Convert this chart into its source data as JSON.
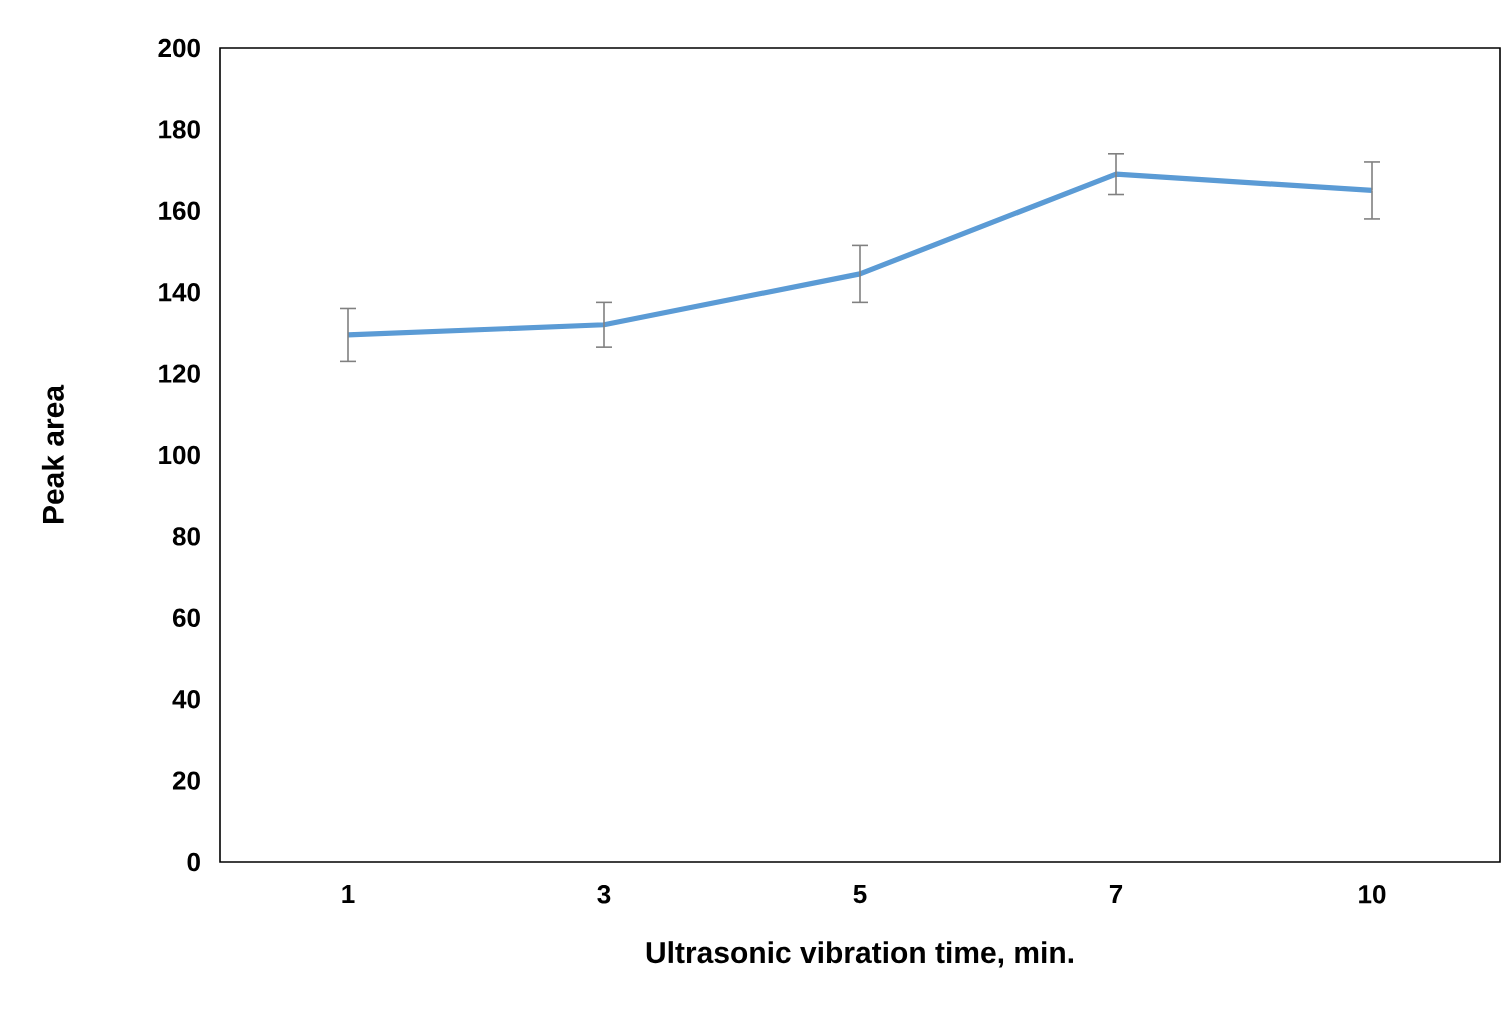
{
  "chart_data": {
    "type": "line",
    "xlabel": "Ultrasonic vibration time, min.",
    "ylabel": "Peak area",
    "categories": [
      "1",
      "3",
      "5",
      "7",
      "10"
    ],
    "values": [
      129.5,
      132,
      144.5,
      169,
      165
    ],
    "errors": [
      6.5,
      5.5,
      7,
      5,
      7
    ],
    "color": "#5b9bd5",
    "ylim": [
      0,
      200
    ],
    "yticks": [
      0,
      20,
      40,
      60,
      80,
      100,
      120,
      140,
      160,
      180,
      200
    ],
    "grid": false,
    "marker": "none",
    "line_style": "solid"
  }
}
